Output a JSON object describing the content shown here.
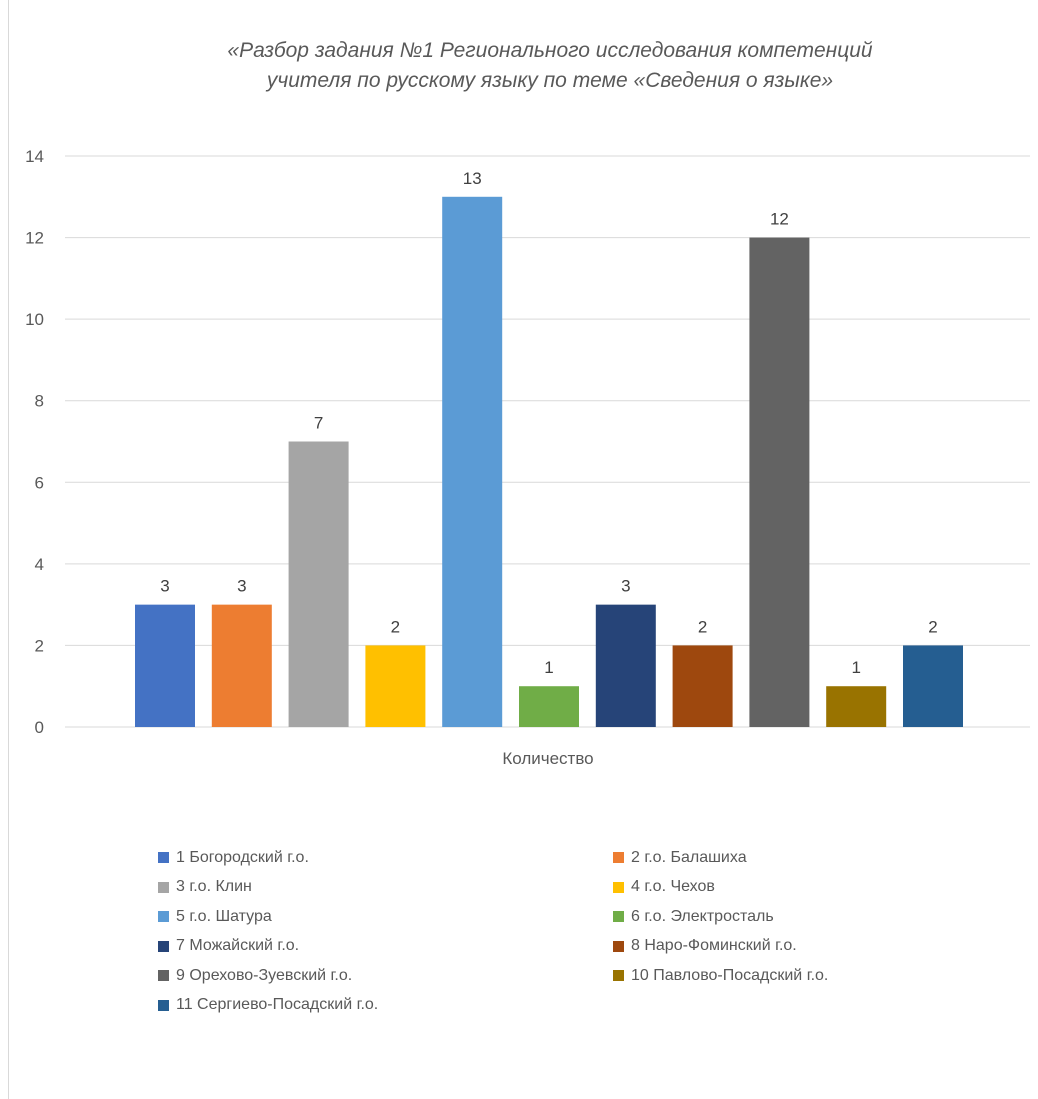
{
  "chart_data": {
    "type": "bar",
    "title": "«Разбор задания №1 Регионального исследования компетенций\nучителя по русскому языку по теме «Сведения о языке»",
    "xlabel": "Количество",
    "ylabel": "",
    "ylim": [
      0,
      14
    ],
    "yticks": [
      "0",
      "2",
      "4",
      "6",
      "8",
      "10",
      "12",
      "14"
    ],
    "grid": true,
    "legend_position": "bottom",
    "categories": [
      "Количество"
    ],
    "series": [
      {
        "name": "1 Богородский г.о.",
        "value": 3,
        "label": "3",
        "color": "#4472C4"
      },
      {
        "name": "2 г.о. Балашиха",
        "value": 3,
        "label": "3",
        "color": "#ED7D31"
      },
      {
        "name": "3 г.о. Клин",
        "value": 7,
        "label": "7",
        "color": "#A5A5A5"
      },
      {
        "name": "4 г.о. Чехов",
        "value": 2,
        "label": "2",
        "color": "#FFC000"
      },
      {
        "name": "5 г.о. Шатура",
        "value": 13,
        "label": "13",
        "color": "#5B9BD5"
      },
      {
        "name": "6 г.о. Электросталь",
        "value": 1,
        "label": "1",
        "color": "#70AD47"
      },
      {
        "name": "7 Можайский г.о.",
        "value": 3,
        "label": "3",
        "color": "#264478"
      },
      {
        "name": "8 Наро-Фоминский г.о.",
        "value": 2,
        "label": "2",
        "color": "#9E480E"
      },
      {
        "name": "9 Орехово-Зуевский г.о.",
        "value": 12,
        "label": "12",
        "color": "#636363"
      },
      {
        "name": "10 Павлово-Посадский г.о.",
        "value": 1,
        "label": "1",
        "color": "#997300"
      },
      {
        "name": "11 Сергиево-Посадский г.о.",
        "value": 2,
        "label": "2",
        "color": "#255E91"
      }
    ]
  }
}
